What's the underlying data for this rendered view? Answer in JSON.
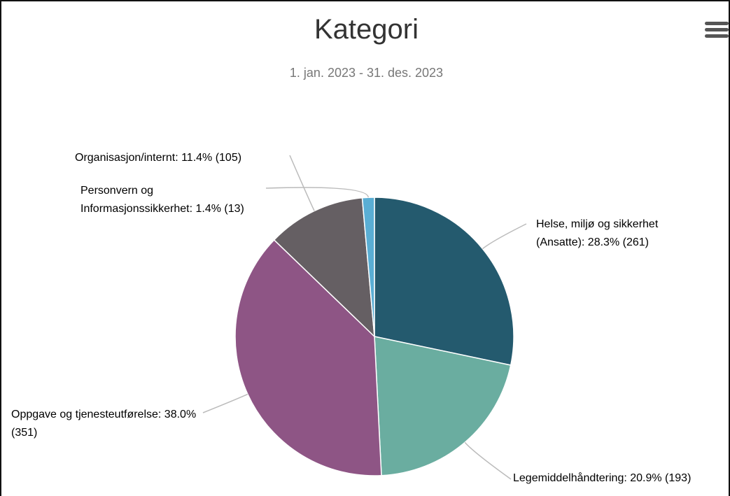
{
  "chart_data": {
    "type": "pie",
    "title": "Kategori",
    "subtitle": "1. jan. 2023 - 31. des. 2023",
    "values": [
      28.3,
      20.9,
      38.0,
      11.4,
      1.4
    ],
    "value_labels": [
      "Helse, miljø og sikkerhet (Ansatte): 28.3% (261)",
      "Legemiddelhåndtering: 20.9% (193)",
      "Oppgave og tjenesteutførelse: 38.0% (351)",
      "Organisasjon/internt: 11.4% (105)",
      "Personvern og Informasjonssikkerhet: 1.4% (13)"
    ],
    "colors": [
      "#245a6e",
      "#6aada0",
      "#8e5585",
      "#655f63",
      "#5aaed4"
    ]
  }
}
